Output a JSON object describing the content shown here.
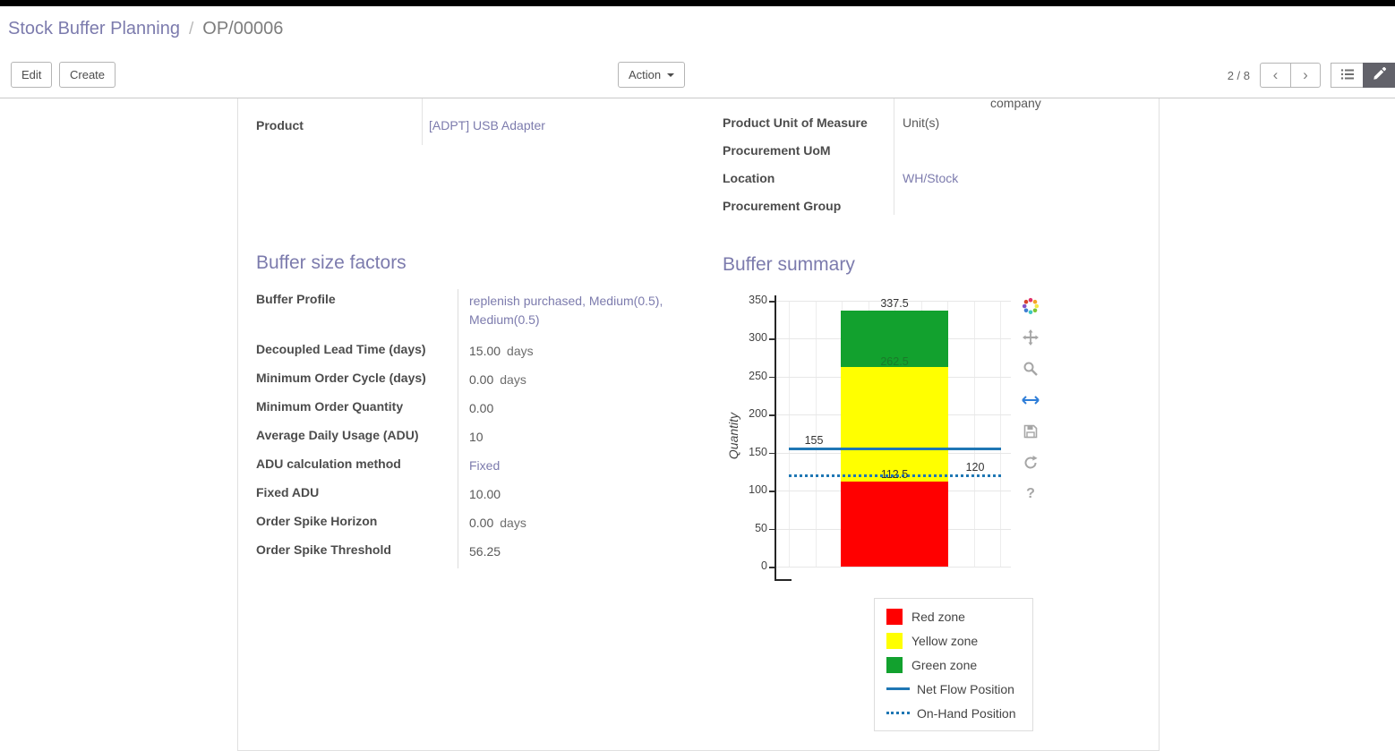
{
  "breadcrumb": {
    "parent": "Stock Buffer Planning",
    "separator": "/",
    "current": "OP/00006"
  },
  "control_panel": {
    "edit": "Edit",
    "create": "Create",
    "action": "Action",
    "pager_value": "2 / 8",
    "prev_glyph": "‹",
    "next_glyph": "›"
  },
  "sheet": {
    "clipped_text": "company",
    "product": {
      "label": "Product",
      "value": "[ADPT] USB Adapter"
    },
    "right_fields": [
      {
        "label": "Product Unit of Measure",
        "value": "Unit(s)",
        "link": false
      },
      {
        "label": "Procurement UoM",
        "value": "",
        "link": false
      },
      {
        "label": "Location",
        "value": "WH/Stock",
        "link": true
      },
      {
        "label": "Procurement Group",
        "value": "",
        "link": false
      }
    ],
    "buffer_factors": {
      "title": "Buffer size factors",
      "rows": [
        {
          "label": "Buffer Profile",
          "value": "replenish purchased, Medium(0.5), Medium(0.5)",
          "suffix": "",
          "link": true
        },
        {
          "label": "Decoupled Lead Time (days)",
          "value": "15.00",
          "suffix": "days",
          "link": false
        },
        {
          "label": "Minimum Order Cycle (days)",
          "value": "0.00",
          "suffix": "days",
          "link": false
        },
        {
          "label": "Minimum Order Quantity",
          "value": "0.00",
          "suffix": "",
          "link": false
        },
        {
          "label": "Average Daily Usage (ADU)",
          "value": "10",
          "suffix": "",
          "link": false
        },
        {
          "label": "ADU calculation method",
          "value": "Fixed",
          "suffix": "",
          "link": true
        },
        {
          "label": "Fixed ADU",
          "value": "10.00",
          "suffix": "",
          "link": false
        },
        {
          "label": "Order Spike Horizon",
          "value": "0.00",
          "suffix": "days",
          "link": false
        },
        {
          "label": "Order Spike Threshold",
          "value": "56.25",
          "suffix": "",
          "link": false
        }
      ]
    },
    "buffer_summary": {
      "title": "Buffer summary",
      "chart_data": {
        "type": "bar",
        "ylabel": "Quantity",
        "ylim": [
          0,
          350
        ],
        "yticks": [
          350,
          300,
          250,
          200,
          150,
          100,
          50,
          0
        ],
        "grid": true,
        "zones": [
          {
            "name": "Red zone",
            "from": 0,
            "to": 112.5,
            "color": "#ff0000"
          },
          {
            "name": "Yellow zone",
            "from": 112.5,
            "to": 262.5,
            "color": "#ffff00"
          },
          {
            "name": "Green zone",
            "from": 262.5,
            "to": 337.5,
            "color": "#12a12e"
          }
        ],
        "lines": [
          {
            "name": "Net Flow Position",
            "value": 155,
            "style": "solid",
            "color": "#1f77b4"
          },
          {
            "name": "On-Hand Position",
            "value": 120,
            "style": "dotted",
            "color": "#1f77b4"
          }
        ],
        "annotations": [
          {
            "text": "337.5",
            "value": 337.5,
            "x": "center",
            "dy": -15,
            "color": "#333333"
          },
          {
            "text": "262.5",
            "value": 262.5,
            "x": "center",
            "dy": -13,
            "color": "#1b7a2a"
          },
          {
            "text": "112.5",
            "value": 112.5,
            "x": "center",
            "dy": -15,
            "color": "#333333"
          },
          {
            "text": "155",
            "value": 155,
            "x": 100,
            "dy": -16,
            "color": "#333333"
          },
          {
            "text": "120",
            "value": 120,
            "x": 280,
            "dy": -16,
            "color": "#333333"
          }
        ],
        "legend_position": "bottom-right",
        "legend": [
          {
            "label": "Red zone",
            "swatch": "square",
            "color": "#ff0000"
          },
          {
            "label": "Yellow zone",
            "swatch": "square",
            "color": "#ffff00"
          },
          {
            "label": "Green zone",
            "swatch": "square",
            "color": "#12a12e"
          },
          {
            "label": "Net Flow Position",
            "swatch": "line",
            "color": "#1f77b4"
          },
          {
            "label": "On-Hand Position",
            "swatch": "dots",
            "color": "#1f77b4"
          }
        ]
      }
    }
  },
  "icons": {
    "help_glyph": "?",
    "modebar": [
      "plotly-logo-icon",
      "pan-icon",
      "zoom-icon",
      "autoscale-icon",
      "save-icon",
      "reset-icon",
      "help-icon"
    ],
    "view_switcher": [
      "list-view-icon",
      "form-view-icon"
    ],
    "pager_nav": [
      "chevron-left-icon",
      "chevron-right-icon"
    ],
    "action_button_icon": "caret-down-icon"
  },
  "colors": {
    "accent": "#7c7bad",
    "red_zone": "#ff0000",
    "yellow_zone": "#ffff00",
    "green_zone": "#12a12e",
    "chart_line_blue": "#1f77b4",
    "active_view_button": "#62626a"
  }
}
